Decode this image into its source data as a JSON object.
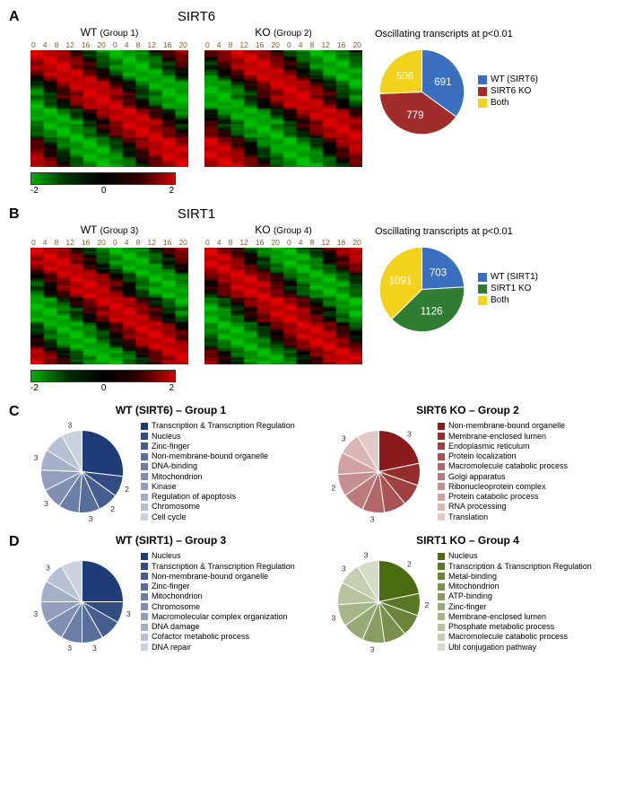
{
  "heatmap_colorscale": {
    "min": -2,
    "mid": 0,
    "max": 2,
    "min_color": "#00c000",
    "mid_color": "#000000",
    "max_color": "#e00000"
  },
  "heatmap_ticks": [
    "0",
    "4",
    "8",
    "12",
    "16",
    "20",
    "0",
    "4",
    "8",
    "12",
    "16",
    "20"
  ],
  "panelA": {
    "label": "A",
    "main_title": "SIRT6",
    "left_title": "WT",
    "left_group": "(Group 1)",
    "right_title": "KO",
    "right_group": "(Group 2)",
    "heatmap_rows": 60,
    "heatmap_cols": 12,
    "phase_shift_right": 2,
    "pie_title": "Oscillating transcripts at p<0.01",
    "pie": {
      "slices": [
        {
          "label": "WT (SIRT6)",
          "value": 691,
          "color": "#3a6fbf"
        },
        {
          "label": "SIRT6 KO",
          "value": 779,
          "color": "#a02c2c"
        },
        {
          "label": "Both",
          "value": 506,
          "color": "#f2d21a"
        }
      ]
    }
  },
  "panelB": {
    "label": "B",
    "main_title": "SIRT1",
    "left_title": "WT",
    "left_group": "(Group 3)",
    "right_title": "KO",
    "right_group": "(Group 4)",
    "heatmap_rows": 70,
    "heatmap_cols": 12,
    "phase_shift_right": -1,
    "pie_title": "Oscillating transcripts at p<0.01",
    "pie": {
      "slices": [
        {
          "label": "WT (SIRT1)",
          "value": 703,
          "color": "#3a6fbf"
        },
        {
          "label": "SIRT1 KO",
          "value": 1126,
          "color": "#2e7d32"
        },
        {
          "label": "Both",
          "value": 1091,
          "color": "#f2d21a"
        }
      ]
    }
  },
  "panelC": {
    "label": "C",
    "left": {
      "title": "WT (SIRT6) – Group 1",
      "palette_base": "#1f3c78",
      "items": [
        {
          "label": "Transcription & Transcription Regulation",
          "num": ""
        },
        {
          "label": "Nucleus",
          "num": "2"
        },
        {
          "label": "Zinc-finger",
          "num": "2"
        },
        {
          "label": "Non-membrane-bound organelle",
          "num": "3"
        },
        {
          "label": "DNA-binding",
          "num": ""
        },
        {
          "label": "Mitochondrion",
          "num": "3"
        },
        {
          "label": "Kinase",
          "num": ""
        },
        {
          "label": "Regulation of apoptosis",
          "num": "3"
        },
        {
          "label": "Chromosome",
          "num": ""
        },
        {
          "label": "Cell cycle",
          "num": "3"
        }
      ],
      "slice_weights": [
        3.3,
        1,
        1,
        1,
        1,
        1,
        1,
        1,
        1,
        1
      ]
    },
    "right": {
      "title": "SIRT6 KO – Group 2",
      "palette_base": "#8b1a1a",
      "items": [
        {
          "label": "Non-membrane-bound organelle",
          "num": "3"
        },
        {
          "label": "Membrane-enclosed lumen",
          "num": ""
        },
        {
          "label": "Endoplasmic reticulum",
          "num": ""
        },
        {
          "label": "Protein localization",
          "num": ""
        },
        {
          "label": "Macromolecule catabolic process",
          "num": "3"
        },
        {
          "label": "Golgi apparatus",
          "num": ""
        },
        {
          "label": "Ribonucleoprotein complex",
          "num": "2"
        },
        {
          "label": "Protein catabolic process",
          "num": ""
        },
        {
          "label": "RNA processing",
          "num": "3"
        },
        {
          "label": "Translation",
          "num": ""
        }
      ],
      "slice_weights": [
        2.5,
        1,
        1,
        1,
        1,
        1,
        1,
        1,
        1,
        1
      ]
    }
  },
  "panelD": {
    "label": "D",
    "left": {
      "title": "WT (SIRT1) – Group 3",
      "palette_base": "#1f3c78",
      "items": [
        {
          "label": "Nucleus",
          "num": ""
        },
        {
          "label": "Transcription & Transcription Regulation",
          "num": "3"
        },
        {
          "label": "Non-membrane-bound organelle",
          "num": ""
        },
        {
          "label": "Zinc-finger",
          "num": "3"
        },
        {
          "label": "Mitochondrion",
          "num": "3"
        },
        {
          "label": "Chromosome",
          "num": ""
        },
        {
          "label": "Macromolecular complex organization",
          "num": "3"
        },
        {
          "label": "DNA damage",
          "num": ""
        },
        {
          "label": "Cofactor metabolic process",
          "num": "3"
        },
        {
          "label": "DNA repair",
          "num": ""
        }
      ],
      "slice_weights": [
        3.0,
        1,
        1,
        1,
        1,
        1,
        1,
        1,
        1,
        1
      ]
    },
    "right": {
      "title": "SIRT1 KO – Group 4",
      "palette_base": "#4a6b0f",
      "items": [
        {
          "label": "Nucleus",
          "num": "2"
        },
        {
          "label": "Transcription & Transcription Regulation",
          "num": "2"
        },
        {
          "label": "Metal-binding",
          "num": ""
        },
        {
          "label": "Mitochondrion",
          "num": ""
        },
        {
          "label": "ATP-binding",
          "num": "3"
        },
        {
          "label": "Zinc-finger",
          "num": ""
        },
        {
          "label": "Membrane-enclosed lumen",
          "num": "3"
        },
        {
          "label": "Phosphate metabolic process",
          "num": ""
        },
        {
          "label": "Macromolecule catabolic process",
          "num": "3"
        },
        {
          "label": "Ubl conjugation pathway",
          "num": "3"
        }
      ],
      "slice_weights": [
        2.5,
        1,
        1,
        1,
        1,
        1,
        1,
        1,
        1,
        1
      ]
    }
  }
}
